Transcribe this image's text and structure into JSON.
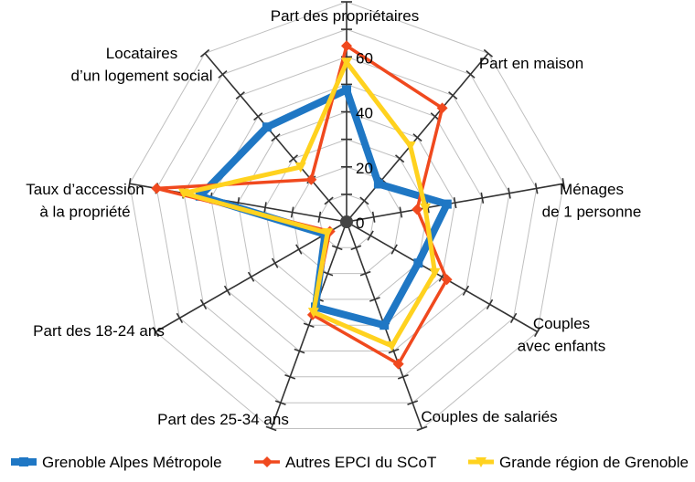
{
  "chart_data": {
    "type": "radar",
    "categories": [
      [
        "Part des propriétaires"
      ],
      [
        "Part en maison"
      ],
      [
        "Ménages",
        "de 1 personne"
      ],
      [
        "Couples",
        "avec enfants"
      ],
      [
        "Couples de salariés"
      ],
      [
        "Part des 25-34 ans"
      ],
      [
        "Part des 18-24 ans"
      ],
      [
        "Taux d’accession",
        "à la propriété"
      ],
      [
        "Locataires",
        "d’un logement social"
      ]
    ],
    "radial_ticks": [
      0,
      20,
      40,
      60
    ],
    "rmax": 80,
    "series": [
      {
        "name": "Grenoble Alpes Métropole",
        "color": "#1F77C4",
        "marker": "square",
        "values": [
          48,
          18,
          37,
          30,
          40,
          33,
          9,
          54,
          45
        ]
      },
      {
        "name": "Autres EPCI du SCoT",
        "color": "#F0491E",
        "marker": "diamond",
        "values": [
          64,
          54,
          26,
          42,
          55,
          36,
          7,
          70,
          20
        ]
      },
      {
        "name": "Grande région de Grenoble",
        "color": "#FFD21F",
        "marker": "triangle",
        "values": [
          58,
          36,
          29,
          37,
          48,
          35,
          8,
          60,
          26
        ]
      }
    ],
    "grid": true,
    "legend_position": "bottom"
  }
}
